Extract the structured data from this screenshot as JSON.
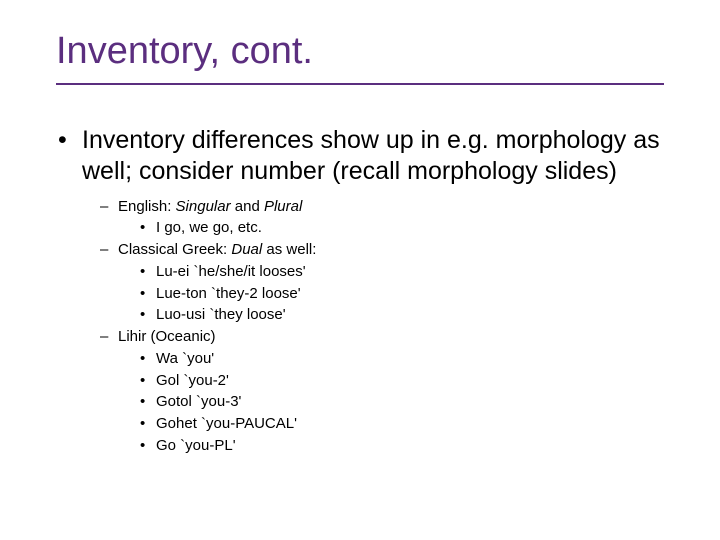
{
  "colors": {
    "title": "#5b2e7f",
    "underline": "#5b2e7f",
    "body": "#000000",
    "background": "#ffffff"
  },
  "slide": {
    "title": "Inventory, cont.",
    "bullet1": "Inventory differences show up in e.g. morphology as well; consider number (recall morphology slides)",
    "sub": [
      {
        "label_pre": "English: ",
        "label_it1": "Singular",
        "label_mid": " and ",
        "label_it2": "Plural",
        "items": [
          "I go, we go, etc."
        ]
      },
      {
        "label_pre": "Classical Greek: ",
        "label_it1": "Dual",
        "label_mid": "  as well:",
        "label_it2": "",
        "items": [
          "Lu-ei `he/she/it looses'",
          "Lue-ton `they-2 loose'",
          "Luo-usi `they loose'"
        ]
      },
      {
        "label_pre": "Lihir (Oceanic)",
        "label_it1": "",
        "label_mid": "",
        "label_it2": "",
        "items": [
          "Wa `you'",
          "Gol `you-2'",
          "Gotol `you-3'",
          "Gohet `you-PAUCAL'",
          "Go `you-PL'"
        ]
      }
    ]
  }
}
